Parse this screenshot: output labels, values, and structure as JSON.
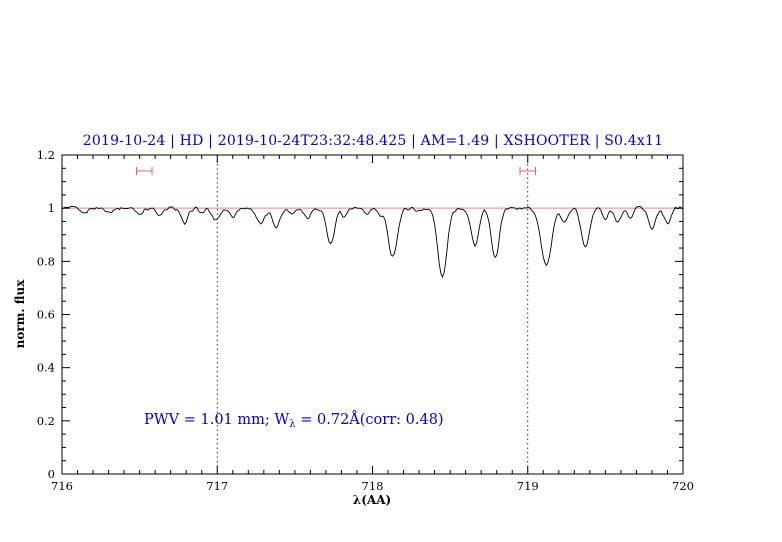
{
  "annotation": {
    "prefix": "PWV = 1.01 mm; W",
    "sub": "λ",
    "suffix": " = 0.72Å(corr: 0.48)"
  },
  "chart_data": {
    "type": "line",
    "title": "2019-10-24 | HD | 2019-10-24T23:32:48.425 | AM=1.49 | XSHOOTER | S0.4x11",
    "xlabel": "λ(AA)",
    "ylabel": "norm. flux",
    "xlim": [
      716,
      720
    ],
    "ylim": [
      0,
      1.2
    ],
    "xticks": {
      "major": [
        716,
        717,
        718,
        719,
        720
      ],
      "labels": [
        "716",
        "717",
        "718",
        "719",
        "720"
      ],
      "minor_step": 0.1
    },
    "yticks": {
      "major": [
        0,
        0.2,
        0.4,
        0.6,
        0.8,
        1,
        1.2
      ],
      "labels": [
        "0",
        "0.2",
        "0.4",
        "0.6",
        "0.8",
        "1",
        "1.2"
      ],
      "minor_step": 0.05
    },
    "vlines_dotted": [
      717,
      719
    ],
    "continuum_y": 1.0,
    "series_note": "telluric absorption spectrum; lines given as [center_AA, depth, fwhm_AA] relative to continuum 1.0",
    "absorption_lines": [
      [
        716.14,
        0.018,
        0.05
      ],
      [
        716.31,
        0.014,
        0.05
      ],
      [
        716.5,
        0.02,
        0.05
      ],
      [
        716.63,
        0.03,
        0.05
      ],
      [
        716.79,
        0.062,
        0.05
      ],
      [
        716.9,
        0.018,
        0.04
      ],
      [
        716.99,
        0.045,
        0.06
      ],
      [
        717.1,
        0.03,
        0.05
      ],
      [
        717.28,
        0.062,
        0.06
      ],
      [
        717.38,
        0.068,
        0.06
      ],
      [
        717.48,
        0.02,
        0.04
      ],
      [
        717.58,
        0.035,
        0.05
      ],
      [
        717.73,
        0.135,
        0.06
      ],
      [
        717.82,
        0.03,
        0.04
      ],
      [
        717.96,
        0.022,
        0.05
      ],
      [
        718.05,
        0.025,
        0.04
      ],
      [
        718.13,
        0.18,
        0.07
      ],
      [
        718.3,
        0.012,
        0.04
      ],
      [
        718.45,
        0.26,
        0.07
      ],
      [
        718.66,
        0.14,
        0.06
      ],
      [
        718.79,
        0.19,
        0.06
      ],
      [
        719.12,
        0.215,
        0.08
      ],
      [
        719.24,
        0.05,
        0.05
      ],
      [
        719.37,
        0.15,
        0.06
      ],
      [
        719.5,
        0.04,
        0.04
      ],
      [
        719.58,
        0.055,
        0.05
      ],
      [
        719.66,
        0.045,
        0.04
      ],
      [
        719.8,
        0.08,
        0.05
      ],
      [
        719.9,
        0.055,
        0.05
      ]
    ],
    "markers": [
      {
        "x": 716.53,
        "y": 1.14,
        "halfwidth": 0.05
      },
      {
        "x": 719.0,
        "y": 1.14,
        "halfwidth": 0.05
      }
    ],
    "colors": {
      "title": "#0000cd",
      "annotation": "#0000cd",
      "continuum": "#f08080",
      "marker": "#e06060",
      "spectrum": "#000000",
      "axis": "#000000"
    },
    "legend": "none",
    "grid": "off"
  }
}
